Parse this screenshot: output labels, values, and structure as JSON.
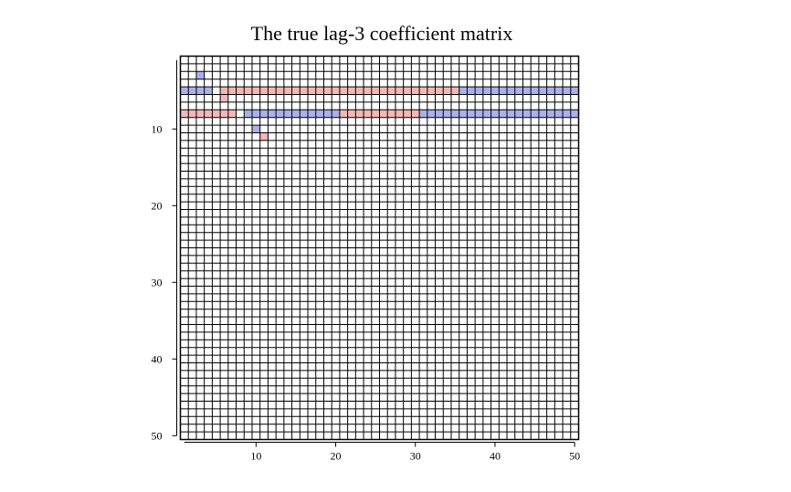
{
  "chart_data": {
    "type": "heatmap",
    "title": "The true lag-3 coefficient matrix",
    "xlabel": "",
    "ylabel": "",
    "rows": 50,
    "cols": 50,
    "xlim": [
      1,
      50
    ],
    "ylim": [
      1,
      50
    ],
    "y_axis_top_to_bottom": true,
    "x_ticks": [
      10,
      20,
      30,
      40,
      50
    ],
    "y_ticks": [
      10,
      20,
      30,
      40,
      50
    ],
    "grid": true,
    "colors": {
      "positive": "#f4b6b6",
      "negative": "#aab0ec",
      "zero": "#ffffff",
      "grid": "#000000"
    },
    "nonzero_cells": [
      {
        "row": 3,
        "cols": [
          3
        ],
        "sign": "negative"
      },
      {
        "row": 5,
        "cols": [
          1,
          2,
          3,
          4
        ],
        "sign": "negative"
      },
      {
        "row": 5,
        "cols": [
          6,
          7,
          8,
          9,
          10,
          11,
          12,
          13,
          14,
          15,
          16,
          17,
          18,
          19,
          20,
          21,
          22,
          23,
          24,
          25,
          26,
          27,
          28,
          29,
          30,
          31,
          32,
          33,
          34,
          35
        ],
        "sign": "positive"
      },
      {
        "row": 5,
        "cols": [
          36,
          37,
          38,
          39,
          40,
          41,
          42,
          43,
          44,
          45,
          46,
          47,
          48,
          49,
          50
        ],
        "sign": "negative"
      },
      {
        "row": 6,
        "cols": [
          6
        ],
        "sign": "positive"
      },
      {
        "row": 8,
        "cols": [
          1,
          2,
          3,
          4,
          5,
          6,
          7
        ],
        "sign": "positive"
      },
      {
        "row": 8,
        "cols": [
          9,
          10,
          11,
          12,
          13,
          14,
          15,
          16,
          17,
          18,
          19,
          20
        ],
        "sign": "negative"
      },
      {
        "row": 8,
        "cols": [
          21,
          22,
          23,
          24,
          25,
          26,
          27,
          28,
          29,
          30
        ],
        "sign": "positive"
      },
      {
        "row": 8,
        "cols": [
          31,
          32,
          33,
          34,
          35,
          36,
          37,
          38,
          39,
          40,
          41,
          42,
          43,
          44,
          45,
          46,
          47,
          48,
          49,
          50
        ],
        "sign": "negative"
      },
      {
        "row": 10,
        "cols": [
          10
        ],
        "sign": "negative"
      },
      {
        "row": 11,
        "cols": [
          11
        ],
        "sign": "positive"
      }
    ]
  }
}
